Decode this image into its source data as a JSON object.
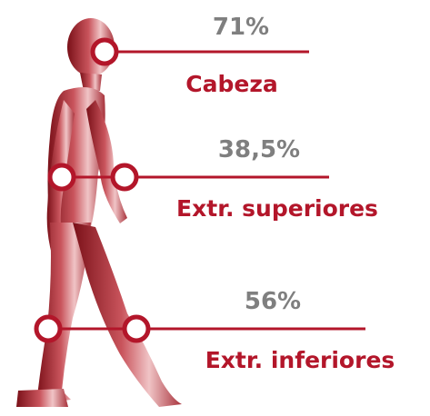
{
  "items": [
    {
      "percent": "71%",
      "label": "Cabeza"
    },
    {
      "percent": "38,5%",
      "label": "Extr. superiores"
    },
    {
      "percent": "56%",
      "label": "Extr. inferiores"
    }
  ]
}
